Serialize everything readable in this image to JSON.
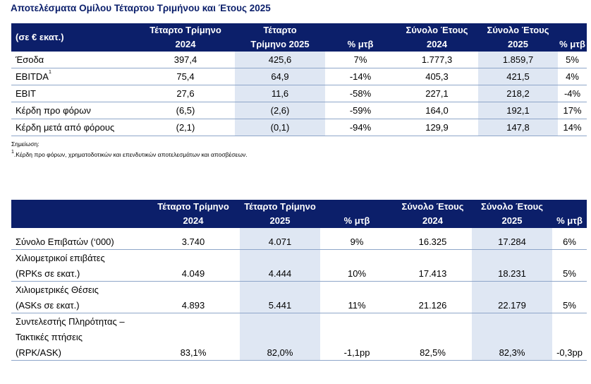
{
  "title": "Αποτελέσματα Ομίλου Τέταρτου Τριμήνου και Έτους 2025",
  "table1": {
    "headers": [
      [
        "(σε € εκατ.)"
      ],
      [
        "Τέταρτο Τρίμηνο",
        "2024"
      ],
      [
        "Τέταρτο",
        "Τρίμηνο 2025"
      ],
      [
        "% μτβ"
      ],
      [
        "Σύνολο Έτους",
        "2024"
      ],
      [
        "Σύνολο Έτους",
        "2025"
      ],
      [
        "% μτβ"
      ]
    ],
    "rows": [
      {
        "label": "Έσοδα",
        "sup": "",
        "values": [
          "397,4",
          "425,6",
          "7%",
          "1.777,3",
          "1.859,7",
          "5%"
        ]
      },
      {
        "label": "EBITDA",
        "sup": "1",
        "values": [
          "75,4",
          "64,9",
          "-14%",
          "405,3",
          "421,5",
          "4%"
        ]
      },
      {
        "label": "EBIT",
        "sup": "",
        "values": [
          "27,6",
          "11,6",
          "-58%",
          "227,1",
          "218,2",
          "-4%"
        ]
      },
      {
        "label": "Κέρδη προ φόρων",
        "sup": "",
        "values": [
          "(6,5)",
          "(2,6)",
          "-59%",
          "164,0",
          "192,1",
          "17%"
        ]
      },
      {
        "label": "Κέρδη μετά από φόρους",
        "sup": "",
        "values": [
          "(2,1)",
          "(0,1)",
          "-94%",
          "129,9",
          "147,8",
          "14%"
        ]
      }
    ]
  },
  "note": "Σημείωση:",
  "footnote": {
    "marker": "1",
    "text": "Κέρδη προ φόρων, χρηματοδοτικών και επενδυτικών αποτελεσμάτων και αποσβέσεων."
  },
  "table2": {
    "headers": [
      [
        ""
      ],
      [
        "Τέταρτο Τρίμηνο",
        "2024"
      ],
      [
        "Τέταρτο Τρίμηνο",
        "2025"
      ],
      [
        "% μτβ"
      ],
      [
        "Σύνολο Έτους",
        "2024"
      ],
      [
        "Σύνολο Έτους",
        "2025"
      ],
      [
        "% μτβ"
      ]
    ],
    "rows": [
      {
        "labels": [
          "Σύνολο Επιβατών (‘000)"
        ],
        "values": [
          "3.740",
          "4.071",
          "9%",
          "16.325",
          "17.284",
          "6%"
        ]
      },
      {
        "labels": [
          "Χιλιομετρικοί επιβάτες",
          "(RPKs σε εκατ.)"
        ],
        "values": [
          "4.049",
          "4.444",
          "10%",
          "17.413",
          "18.231",
          "5%"
        ]
      },
      {
        "labels": [
          "Χιλιομετρικές Θέσεις",
          "(ASKs σε εκατ.)"
        ],
        "values": [
          "4.893",
          "5.441",
          "11%",
          "21.126",
          "22.179",
          "5%"
        ]
      },
      {
        "labels": [
          "Συντελεστής Πληρότητας –",
          "Τακτικές πτήσεις",
          "(RPK/ASK)"
        ],
        "values": [
          "83,1%",
          "82,0%",
          "-1,1pp",
          "82,5%",
          "82,3%",
          "-0,3pp"
        ]
      }
    ]
  }
}
